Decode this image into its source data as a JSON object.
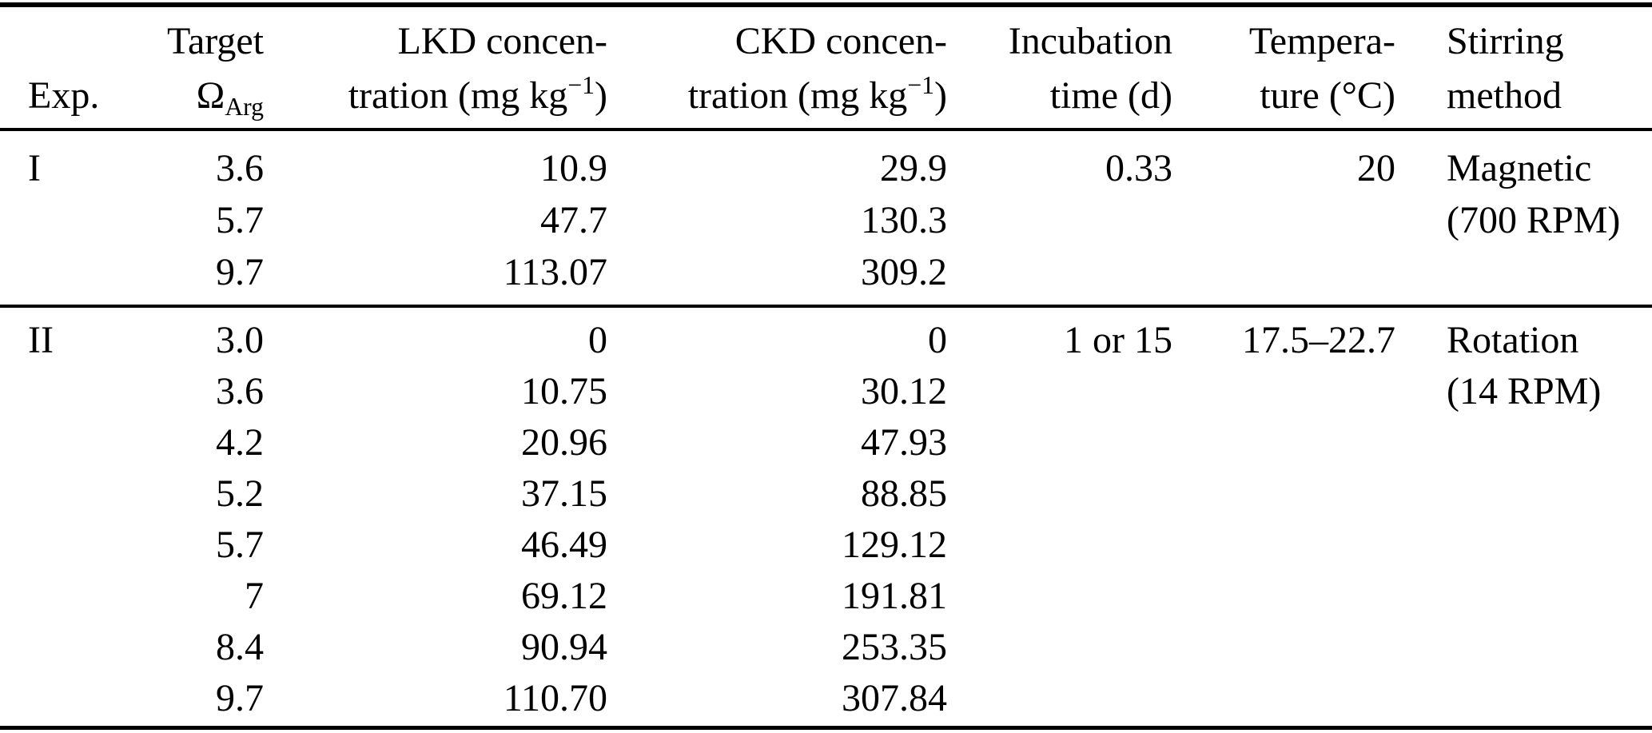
{
  "table": {
    "header": {
      "exp": "Exp.",
      "target": {
        "line1": "Target",
        "omega": "Ω",
        "sub": "Arg"
      },
      "lkd": {
        "line1": "LKD concen-",
        "line2_pre": "tration (mg kg",
        "sup": "−1",
        "line2_post": ")"
      },
      "ckd": {
        "line1": "CKD concen-",
        "line2_pre": "tration (mg kg",
        "sup": "−1",
        "line2_post": ")"
      },
      "incubation": {
        "line1": "Incubation",
        "line2": "time (d)"
      },
      "temperature": {
        "line1": "Tempera-",
        "line2": "ture (°C)"
      },
      "stirring": {
        "line1": "Stirring",
        "line2": "method"
      }
    },
    "sections": [
      {
        "exp": "I",
        "incubation_time": "0.33",
        "temperature": "20",
        "stirring_line1": "Magnetic",
        "stirring_line2": "(700 RPM)",
        "rows": [
          {
            "target": "3.6",
            "lkd": "10.9",
            "ckd": "29.9"
          },
          {
            "target": "5.7",
            "lkd": "47.7",
            "ckd": "130.3"
          },
          {
            "target": "9.7",
            "lkd": "113.07",
            "ckd": "309.2"
          }
        ]
      },
      {
        "exp": "II",
        "incubation_time": "1 or 15",
        "temperature": "17.5–22.7",
        "stirring_line1": "Rotation",
        "stirring_line2": "(14 RPM)",
        "rows": [
          {
            "target": "3.0",
            "lkd": "0",
            "ckd": "0"
          },
          {
            "target": "3.6",
            "lkd": "10.75",
            "ckd": "30.12"
          },
          {
            "target": "4.2",
            "lkd": "20.96",
            "ckd": "47.93"
          },
          {
            "target": "5.2",
            "lkd": "37.15",
            "ckd": "88.85"
          },
          {
            "target": "5.7",
            "lkd": "46.49",
            "ckd": "129.12"
          },
          {
            "target": "7",
            "lkd": "69.12",
            "ckd": "191.81"
          },
          {
            "target": "8.4",
            "lkd": "90.94",
            "ckd": "253.35"
          },
          {
            "target": "9.7",
            "lkd": "110.70",
            "ckd": "307.84"
          }
        ]
      }
    ]
  }
}
